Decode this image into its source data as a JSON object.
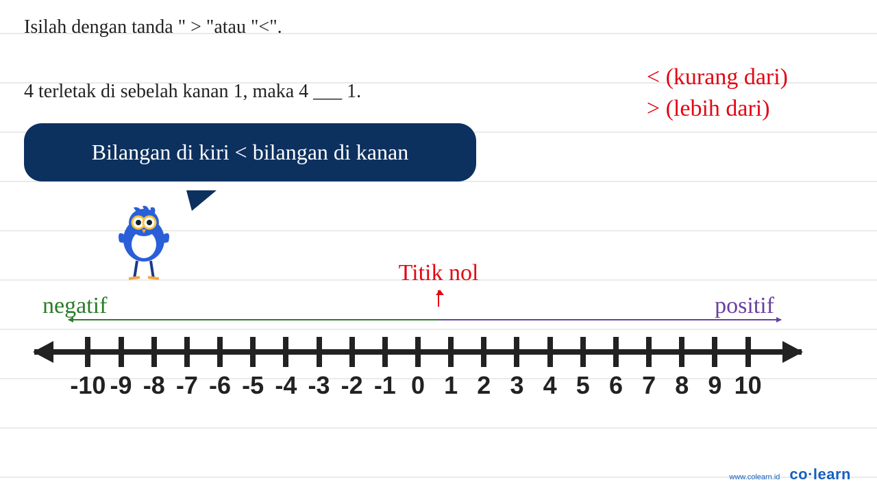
{
  "question": {
    "line1": "Isilah dengan tanda \" > \"atau \"<\".",
    "line2": "4 terletak di sebelah kanan 1, maka 4 ___ 1."
  },
  "legend": {
    "lt": "< (kurang dari)",
    "gt": "> (lebih dari)",
    "color": "#e30613",
    "fontsize": 34
  },
  "bubble": {
    "text": "Bilangan di kiri < bilangan di kanan",
    "bg": "#0d315f",
    "fg": "#ffffff",
    "fontsize": 32
  },
  "numberline": {
    "zero_label": "Titik nol",
    "neg_label": "negatif",
    "pos_label": "positif",
    "neg_color": "#2a7d2a",
    "pos_color": "#6a3fa0",
    "zero_color": "#e30613",
    "axis_color": "#222222",
    "range": [
      -10,
      10
    ],
    "tick_step": 1,
    "ticks": [
      -10,
      -9,
      -8,
      -7,
      -6,
      -5,
      -4,
      -3,
      -2,
      -1,
      0,
      1,
      2,
      3,
      4,
      5,
      6,
      7,
      8,
      9,
      10
    ],
    "tick_width": 8,
    "tick_height": 44,
    "axis_height": 8,
    "label_fontsize": 36
  },
  "mascot": {
    "name": "colearn-bird",
    "body_color": "#2a5fd8",
    "belly_color": "#ffffff",
    "glasses_color": "#f4c542",
    "beak_color": "#f4a742"
  },
  "footer": {
    "url": "www.colearn.id",
    "brand": "co·learn",
    "color": "#1560c0"
  }
}
